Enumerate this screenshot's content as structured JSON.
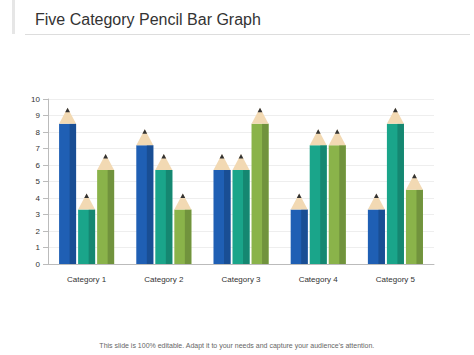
{
  "chart_data": {
    "type": "bar",
    "title": "Five Category Pencil Bar Graph",
    "footnote": "This slide is 100% editable. Adapt it to your needs and capture your audience's attention.",
    "categories": [
      "Category 1",
      "Category 2",
      "Category 3",
      "Category 4",
      "Category 5"
    ],
    "series": [
      {
        "color": "#1f5fb4",
        "values": [
          8.5,
          7.2,
          5.7,
          3.3,
          3.3
        ]
      },
      {
        "color": "#1aa58a",
        "values": [
          3.3,
          5.7,
          5.7,
          7.2,
          8.5
        ]
      },
      {
        "color": "#8ab34a",
        "values": [
          5.7,
          3.3,
          8.5,
          7.2,
          4.5
        ]
      }
    ],
    "ylim": [
      0,
      10
    ],
    "yticks": [
      0,
      1,
      2,
      3,
      4,
      5,
      6,
      7,
      8,
      9,
      10
    ],
    "grid": true
  }
}
